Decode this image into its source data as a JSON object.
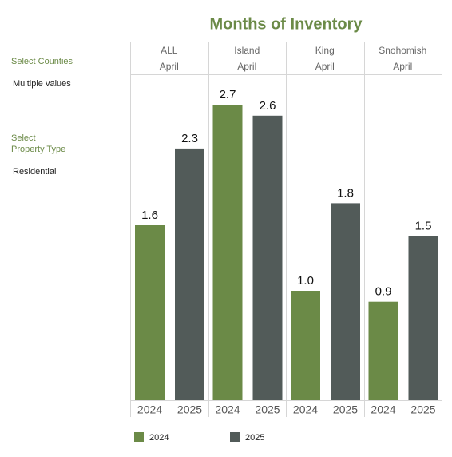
{
  "chart_data": {
    "type": "bar",
    "title": "Months of Inventory",
    "filters": [
      {
        "label": "Select Counties",
        "value": "Multiple values"
      },
      {
        "label": "Select\nProperty Type",
        "value": "Residential"
      }
    ],
    "series": [
      {
        "name": "2024",
        "color": "#6b8a47"
      },
      {
        "name": "2025",
        "color": "#525b59"
      }
    ],
    "facets": [
      {
        "name": "ALL",
        "period": "April",
        "values": [
          1.6,
          2.3
        ],
        "value_labels": [
          "1.6",
          "2.3"
        ]
      },
      {
        "name": "Island",
        "period": "April",
        "values": [
          2.7,
          2.6
        ],
        "value_labels": [
          "2.7",
          "2.6"
        ]
      },
      {
        "name": "King",
        "period": "April",
        "values": [
          1.0,
          1.8
        ],
        "value_labels": [
          "1.0",
          "1.8"
        ]
      },
      {
        "name": "Snohomish",
        "period": "April",
        "values": [
          0.9,
          1.5
        ],
        "value_labels": [
          "0.9",
          "1.5"
        ]
      }
    ]
  }
}
